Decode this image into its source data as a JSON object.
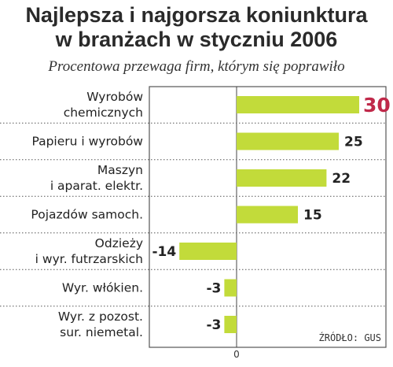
{
  "title_line1": "Najlepsza i najgorsza koniunktura",
  "title_line2": "w branżach w styczniu 2006",
  "subtitle": "Procentowa przewaga firm, którym się poprawiło",
  "source": "ŹRÓDŁO: GUS",
  "colors": {
    "bar": "#c2db3a",
    "highlight": "#c0294a",
    "panel_border": "#555555",
    "separator": "#555555"
  },
  "chart_data": {
    "type": "bar",
    "orientation": "horizontal",
    "title": "Najlepsza i najgorsza koniunktura w branżach w styczniu 2006",
    "subtitle": "Procentowa przewaga firm, którym się poprawiło",
    "categories": [
      [
        "Wyrobów",
        "chemicznych"
      ],
      [
        "Papieru i wyrobów"
      ],
      [
        "Maszyn",
        "i aparat. elektr."
      ],
      [
        "Pojazdów samoch."
      ],
      [
        "Odzieży",
        "i wyr. futrzarskich"
      ],
      [
        "Wyr. włókien."
      ],
      [
        "Wyr. z pozost.",
        "sur. niemetal."
      ]
    ],
    "values": [
      30,
      25,
      22,
      15,
      -14,
      -3,
      -3
    ],
    "value_labels": [
      "30",
      "25",
      "22",
      "15",
      "-14",
      "-3",
      "-3"
    ],
    "highlight_index": 0,
    "zero_label": "0",
    "xlim": [
      -17,
      34
    ],
    "grid": false
  }
}
